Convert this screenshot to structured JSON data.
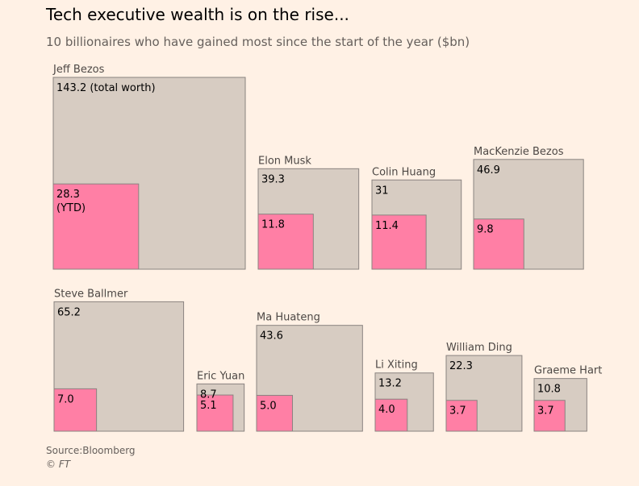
{
  "header": {
    "title": "Tech executive wealth is on the rise...",
    "subtitle": "10 billionaires who have gained most since the start of the year ($bn)"
  },
  "footer": {
    "source": "Source:Bloomberg",
    "credit": "© FT"
  },
  "chart_data": {
    "type": "nested-square",
    "title": "Tech executive wealth is on the rise...",
    "subtitle": "10 billionaires who have gained most since the start of the year ($bn)",
    "series": [
      {
        "name": "total worth",
        "color": "#d7ccc2"
      },
      {
        "name": "YTD",
        "color": "#ff7fa5"
      }
    ],
    "items": [
      {
        "name": "Jeff Bezos",
        "total": 143.2,
        "ytd": 28.3,
        "total_label": "143.2 (total worth)",
        "ytd_label": "28.3",
        "ytd_suffix": "(YTD)"
      },
      {
        "name": "Elon Musk",
        "total": 39.3,
        "ytd": 11.8,
        "total_label": "39.3",
        "ytd_label": "11.8"
      },
      {
        "name": "Colin Huang",
        "total": 31,
        "ytd": 11.4,
        "total_label": "31",
        "ytd_label": "11.4"
      },
      {
        "name": "MacKenzie Bezos",
        "total": 46.9,
        "ytd": 9.8,
        "total_label": "46.9",
        "ytd_label": "9.8"
      },
      {
        "name": "Steve Ballmer",
        "total": 65.2,
        "ytd": 7.0,
        "total_label": "65.2",
        "ytd_label": "7.0"
      },
      {
        "name": "Eric Yuan",
        "total": 8.7,
        "ytd": 5.1,
        "total_label": "8.7",
        "ytd_label": "5.1"
      },
      {
        "name": "Ma Huateng",
        "total": 43.6,
        "ytd": 5.0,
        "total_label": "43.6",
        "ytd_label": "5.0"
      },
      {
        "name": "Li Xiting",
        "total": 13.2,
        "ytd": 4.0,
        "total_label": "13.2",
        "ytd_label": "4.0"
      },
      {
        "name": "William Ding",
        "total": 22.3,
        "ytd": 3.7,
        "total_label": "22.3",
        "ytd_label": "3.7"
      },
      {
        "name": "Graeme Hart",
        "total": 10.8,
        "ytd": 3.7,
        "total_label": "10.8",
        "ytd_label": "3.7"
      }
    ]
  }
}
